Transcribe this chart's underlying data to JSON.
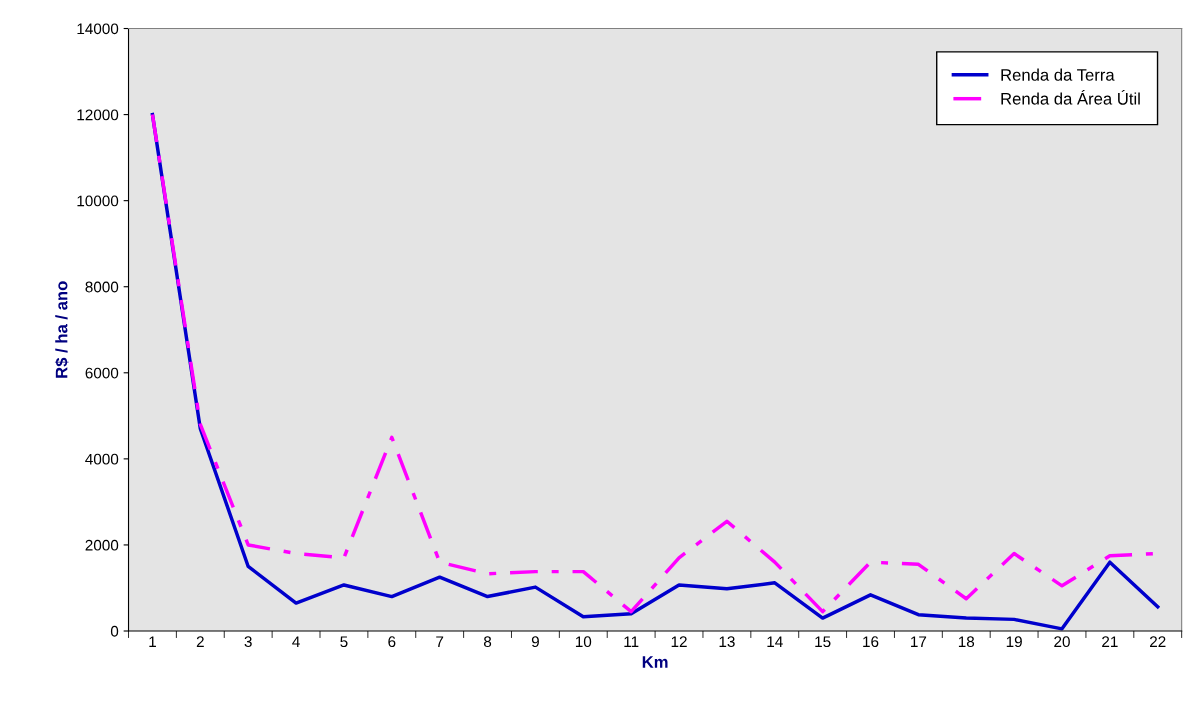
{
  "chart_data": {
    "type": "line",
    "xlabel": "Km",
    "ylabel": "R$ / ha / ano",
    "categories": [
      "1",
      "2",
      "3",
      "4",
      "5",
      "6",
      "7",
      "8",
      "9",
      "10",
      "11",
      "12",
      "13",
      "14",
      "15",
      "16",
      "17",
      "18",
      "19",
      "20",
      "21",
      "22"
    ],
    "series": [
      {
        "name": "Renda da Terra",
        "color": "#0000cc",
        "line_style": "solid",
        "values": [
          12000,
          4700,
          1500,
          650,
          1070,
          800,
          1250,
          800,
          1020,
          330,
          400,
          1070,
          980,
          1120,
          300,
          840,
          380,
          300,
          270,
          50,
          1600,
          560
        ]
      },
      {
        "name": "Renda da Área Útil",
        "color": "#ff00ff",
        "line_style": "dashed",
        "values": [
          12000,
          4800,
          2000,
          1800,
          1700,
          4500,
          1600,
          1330,
          1380,
          1380,
          450,
          1700,
          2550,
          1600,
          450,
          1600,
          1550,
          750,
          1800,
          1050,
          1750,
          1800
        ]
      }
    ],
    "ylim": [
      0,
      14000
    ],
    "yticks": [
      0,
      2000,
      4000,
      6000,
      8000,
      10000,
      12000,
      14000
    ],
    "grid": false,
    "legend": "top right",
    "marker": "none"
  }
}
